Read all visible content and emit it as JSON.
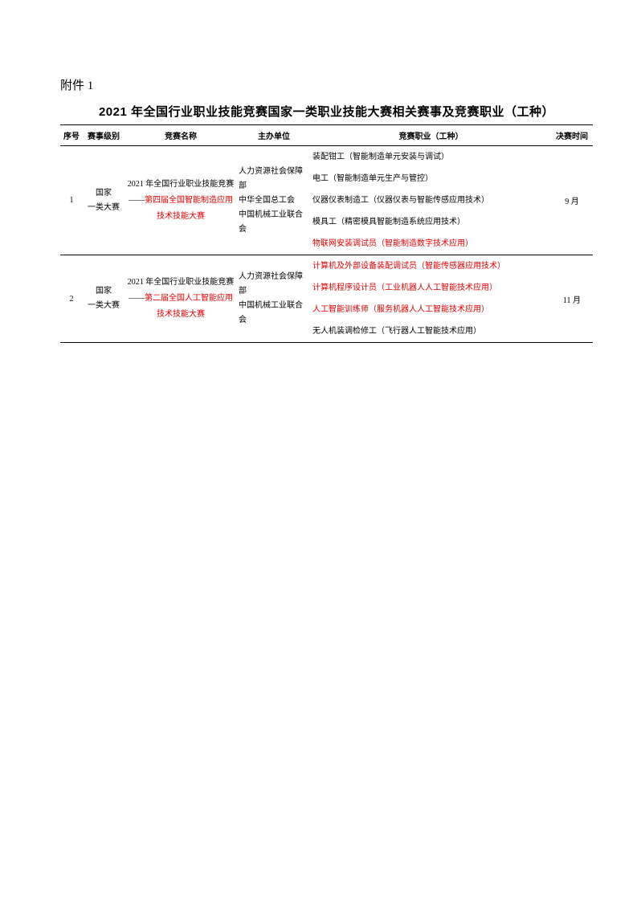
{
  "colors": {
    "text": "#000000",
    "highlight": "#e30000",
    "border": "#000000",
    "background": "#ffffff"
  },
  "attachment_label": "附件 1",
  "title": "2021 年全国行业职业技能竞赛国家一类职业技能大赛相关赛事及竞赛职业（工种）",
  "headers": {
    "seq": "序号",
    "level": "赛事级别",
    "name": "竞赛名称",
    "org": "主办单位",
    "job": "竞赛职业（工种）",
    "time": "决赛时间"
  },
  "rows": [
    {
      "seq": "1",
      "level": "国家\n一类大赛",
      "name_line1": "2021 年全国行业职业技能竞赛",
      "name_dash": "——",
      "name_highlight": "第四届全国智能制造应用\n技术技能大赛",
      "org": "人力资源社会保障部\n中华全国总工会\n中国机械工业联合会",
      "jobs": [
        {
          "text": "装配钳工（智能制造单元安装与调试）",
          "red": false
        },
        {
          "text": "电工（智能制造单元生产与管控）",
          "red": false
        },
        {
          "text": "仪器仪表制造工（仪器仪表与智能传感应用技术）",
          "red": false
        },
        {
          "text": "模具工（精密模具智能制造系统应用技术）",
          "red": false
        },
        {
          "text": "物联网安装调试员（智能制造数字技术应用）",
          "red": true
        }
      ],
      "time": "9 月"
    },
    {
      "seq": "2",
      "level": "国家\n一类大赛",
      "name_line1": "2021 年全国行业职业技能竞赛",
      "name_dash": "——",
      "name_highlight": "第二届全国人工智能应用\n技术技能大赛",
      "org": "人力资源社会保障部\n中国机械工业联合会",
      "jobs": [
        {
          "text": "计算机及外部设备装配调试员（智能传感器应用技术）",
          "red": true
        },
        {
          "text": "计算机程序设计员（工业机器人人工智能技术应用）",
          "red": true
        },
        {
          "text": "人工智能训练师（服务机器人人工智能技术应用）",
          "red": true
        },
        {
          "text": "无人机装调检修工（飞行器人工智能技术应用）",
          "red": false
        }
      ],
      "time": "11 月"
    }
  ]
}
